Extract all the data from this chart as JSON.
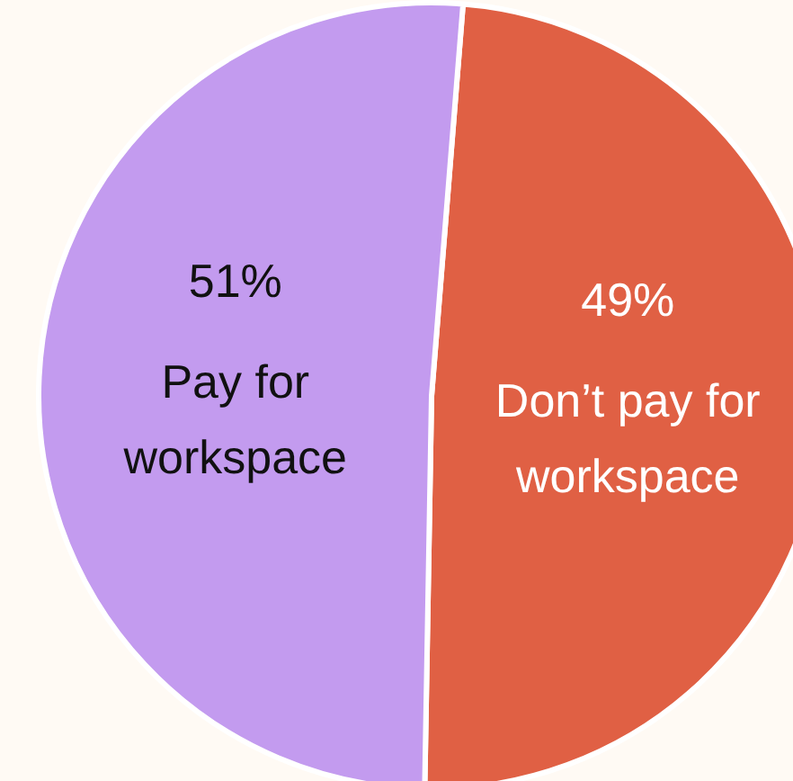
{
  "chart_data": {
    "type": "pie",
    "categories": [
      "Don’t pay for workspace",
      "Pay for workspace"
    ],
    "values": [
      49,
      51
    ],
    "colors": [
      "#e06044",
      "#c39bef"
    ],
    "value_labels": [
      "49%",
      "51%"
    ],
    "legend": false
  }
}
